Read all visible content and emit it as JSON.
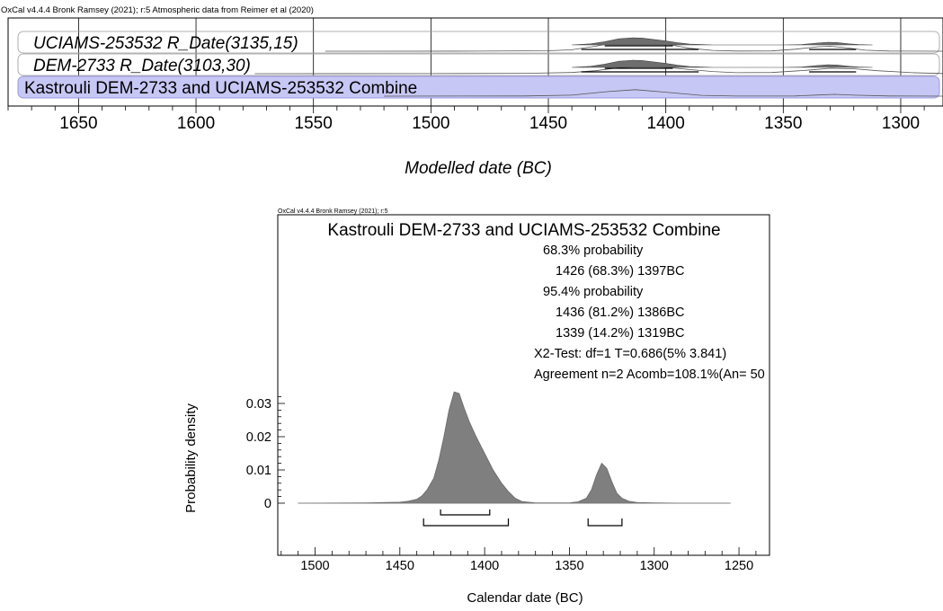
{
  "chart_data": [
    {
      "type": "area",
      "header": "OxCal v4.4.4 Bronk Ramsey (2021); r:5 Atmospheric data from Reimer et al (2020)",
      "xlabel": "Modelled date (BC)",
      "xlim": [
        1680,
        1282
      ],
      "ticks": [
        1650,
        1600,
        1550,
        1500,
        1450,
        1400,
        1350,
        1300
      ],
      "ranges_color": "#000000",
      "highlight_color": "#c7c7f5",
      "rows": [
        {
          "label": "UCIAMS-253532 R_Date(3135,15)",
          "italic": true,
          "highlight": false,
          "likelihood_x": [
            1545,
            1480,
            1450,
            1440,
            1430,
            1420,
            1410,
            1400,
            1390,
            1380,
            1370,
            1355,
            1345,
            1335,
            1330,
            1325,
            1315,
            1305,
            1282
          ],
          "likelihood_y": [
            0,
            0.01,
            0.05,
            0.15,
            0.5,
            0.95,
            1.0,
            0.75,
            0.3,
            0.08,
            0.02,
            0.03,
            0.2,
            0.45,
            0.5,
            0.4,
            0.1,
            0.02,
            0
          ],
          "posterior_x": [
            1440,
            1432,
            1426,
            1420,
            1414,
            1410,
            1400,
            1395,
            1390,
            1380,
            1350,
            1342,
            1336,
            1331,
            1327,
            1322,
            1318,
            1312
          ],
          "posterior_y": [
            0,
            0.15,
            0.45,
            0.85,
            1.0,
            0.95,
            0.55,
            0.3,
            0.12,
            0,
            0,
            0.05,
            0.25,
            0.38,
            0.33,
            0.15,
            0.05,
            0
          ],
          "ranges68": [
            [
              1426,
              1397
            ]
          ],
          "ranges95": [
            [
              1436,
              1386
            ],
            [
              1339,
              1319
            ]
          ]
        },
        {
          "label": "DEM-2733 R_Date(3103,30)",
          "italic": true,
          "highlight": false,
          "likelihood_x": [
            1575,
            1500,
            1460,
            1440,
            1430,
            1420,
            1410,
            1400,
            1390,
            1380,
            1370,
            1355,
            1340,
            1330,
            1320,
            1310,
            1295,
            1282
          ],
          "likelihood_y": [
            0,
            0.01,
            0.04,
            0.12,
            0.3,
            0.6,
            0.72,
            0.65,
            0.42,
            0.22,
            0.1,
            0.12,
            0.35,
            0.55,
            0.5,
            0.3,
            0.1,
            0.02
          ],
          "posterior_x": [
            1440,
            1432,
            1426,
            1420,
            1414,
            1410,
            1400,
            1395,
            1390,
            1380,
            1350,
            1342,
            1336,
            1331,
            1327,
            1322,
            1318,
            1312
          ],
          "posterior_y": [
            0,
            0.15,
            0.45,
            0.85,
            1.0,
            0.95,
            0.55,
            0.3,
            0.12,
            0,
            0,
            0.05,
            0.25,
            0.38,
            0.33,
            0.15,
            0.05,
            0
          ],
          "ranges68": [
            [
              1426,
              1397
            ]
          ],
          "ranges95": [
            [
              1436,
              1386
            ],
            [
              1339,
              1319
            ]
          ]
        },
        {
          "label": "Kastrouli DEM-2733 and UCIAMS-253532 Combine",
          "italic": false,
          "highlight": true,
          "likelihood_x": [
            1520,
            1460,
            1440,
            1425,
            1413,
            1400,
            1385,
            1370,
            1345,
            1335,
            1328,
            1320,
            1305,
            1282
          ],
          "likelihood_y": [
            0,
            0.02,
            0.1,
            0.45,
            0.65,
            0.4,
            0.08,
            0.01,
            0.02,
            0.12,
            0.18,
            0.1,
            0.02,
            0
          ],
          "posterior_x": [],
          "posterior_y": [],
          "ranges68": [],
          "ranges95": []
        }
      ]
    },
    {
      "type": "area",
      "header": "OxCal v4.4.4 Bronk Ramsey (2021); r:5",
      "title": "Kastrouli DEM-2733 and UCIAMS-253532 Combine",
      "xlabel": "Calendar date (BC)",
      "ylabel": "Probability density",
      "xlim": [
        1522,
        1232
      ],
      "ylim": [
        -0.0145,
        0.04
      ],
      "xticks": [
        1500,
        1450,
        1400,
        1350,
        1300,
        1250
      ],
      "yticks": [
        0,
        0.01,
        0.02,
        0.03
      ],
      "ytick_labels": [
        "0",
        "0.01",
        "0.02",
        "0.03"
      ],
      "fill_color": "#7f7f7f",
      "annotations": [
        "68.3% probability",
        "1426 (68.3%) 1397BC",
        "95.4% probability",
        "1436 (81.2%) 1386BC",
        "1339 (14.2%) 1319BC",
        "X2-Test: df=1 T=0.686(5% 3.841)",
        "Agreement n=2 Acomb=108.1%(An= 50"
      ],
      "x": [
        1510,
        1470,
        1450,
        1445,
        1440,
        1437,
        1434,
        1430,
        1427,
        1424,
        1421,
        1418,
        1415,
        1412,
        1409,
        1405,
        1400,
        1395,
        1390,
        1386,
        1382,
        1378,
        1370,
        1350,
        1345,
        1340,
        1337,
        1334,
        1331,
        1328,
        1325,
        1322,
        1319,
        1315,
        1310,
        1300,
        1280,
        1255
      ],
      "y": [
        0,
        0.0001,
        0.0003,
        0.0006,
        0.0012,
        0.0022,
        0.004,
        0.0075,
        0.013,
        0.02,
        0.028,
        0.0335,
        0.033,
        0.0285,
        0.0245,
        0.02,
        0.015,
        0.01,
        0.006,
        0.0035,
        0.0015,
        0.0005,
        0.0001,
        0.0001,
        0.0004,
        0.0015,
        0.004,
        0.0085,
        0.012,
        0.0105,
        0.0065,
        0.003,
        0.0015,
        0.0006,
        0.0002,
        0.0001,
        0,
        0
      ],
      "ranges68": [
        [
          1426,
          1397
        ]
      ],
      "ranges95": [
        [
          1436,
          1386
        ],
        [
          1339,
          1319
        ]
      ]
    }
  ]
}
